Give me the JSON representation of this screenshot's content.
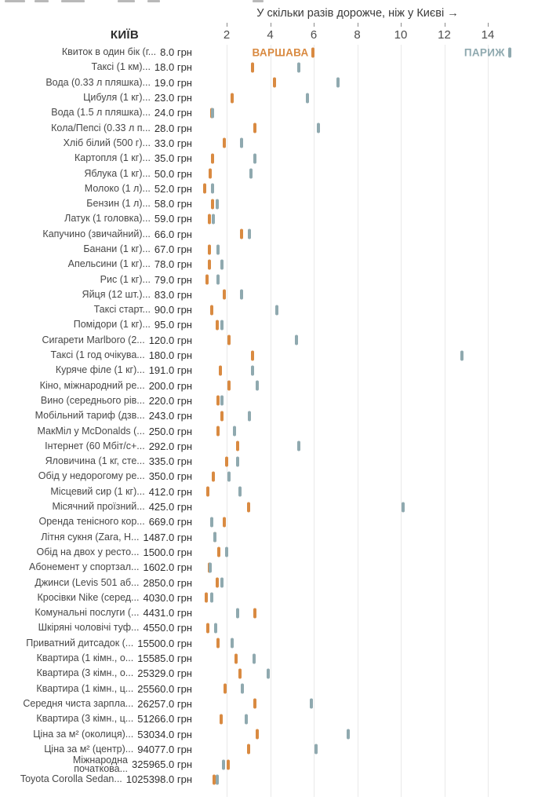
{
  "title": "У скільки разів дорожче, ніж у Києві →",
  "kyiv_header": "КИЇВ",
  "legend": {
    "warsaw": "ВАРШАВА",
    "paris": "ПАРИЖ"
  },
  "colors": {
    "warsaw": "#d98a41",
    "paris": "#8fa9af",
    "grid": "#e9e9e9",
    "title_text": "#3a3a3a",
    "tick_text": "#4d4d4d"
  },
  "chart_data": {
    "type": "scatter",
    "title": "У скільки разів дорожче, ніж у Києві →",
    "xlabel": "У скільки разів дорожче, ніж у Києві (разів)",
    "x_ticks": [
      2,
      4,
      6,
      8,
      10,
      12,
      14
    ],
    "xlim": [
      0.6,
      16.3
    ],
    "grid": true,
    "legend_position": "inline-first-row",
    "series_names": [
      "ВАРШАВА",
      "ПАРИЖ"
    ],
    "items": [
      {
        "name": "Квиток в один бік (г...",
        "price": "8.0 грн",
        "warsaw": 5.95,
        "paris": 15.0
      },
      {
        "name": "Таксі (1 км)...",
        "price": "18.0 грн",
        "warsaw": 3.2,
        "paris": 5.3
      },
      {
        "name": "Вода (0.33 л пляшка)...",
        "price": "19.0 грн",
        "warsaw": 4.2,
        "paris": 7.1
      },
      {
        "name": "Цибуля (1 кг)...",
        "price": "23.0 грн",
        "warsaw": 2.25,
        "paris": 5.7
      },
      {
        "name": "Вода (1.5 л пляшка)...",
        "price": "24.0 грн",
        "warsaw": 1.3,
        "paris": 1.35
      },
      {
        "name": "Кола/Пепсі (0.33 л п...",
        "price": "28.0 грн",
        "warsaw": 3.3,
        "paris": 6.2
      },
      {
        "name": "Хліб білий (500 г)...",
        "price": "33.0 грн",
        "warsaw": 1.9,
        "paris": 2.7
      },
      {
        "name": "Картопля (1 кг)...",
        "price": "35.0 грн",
        "warsaw": 1.35,
        "paris": 3.3
      },
      {
        "name": "Яблука (1 кг)...",
        "price": "50.0 грн",
        "warsaw": 1.25,
        "paris": 3.1
      },
      {
        "name": "Молоко (1 л)...",
        "price": "52.0 грн",
        "warsaw": 1.0,
        "paris": 1.35
      },
      {
        "name": "Бензин (1 л)...",
        "price": "58.0 грн",
        "warsaw": 1.35,
        "paris": 1.55
      },
      {
        "name": "Латук (1 головка)...",
        "price": "59.0 грн",
        "warsaw": 1.2,
        "paris": 1.4
      },
      {
        "name": "Капучино (звичайний)...",
        "price": "66.0 грн",
        "warsaw": 2.7,
        "paris": 3.05
      },
      {
        "name": "Банани (1 кг)...",
        "price": "67.0 грн",
        "warsaw": 1.2,
        "paris": 1.6
      },
      {
        "name": "Апельсини (1 кг)...",
        "price": "78.0 грн",
        "warsaw": 1.2,
        "paris": 1.8
      },
      {
        "name": "Рис (1 кг)...",
        "price": "79.0 грн",
        "warsaw": 1.1,
        "paris": 1.6
      },
      {
        "name": "Яйця (12 шт.)...",
        "price": "83.0 грн",
        "warsaw": 1.9,
        "paris": 2.7
      },
      {
        "name": "Таксі старт...",
        "price": "90.0 грн",
        "warsaw": 1.3,
        "paris": 4.3
      },
      {
        "name": "Помідори (1 кг)...",
        "price": "95.0 грн",
        "warsaw": 1.55,
        "paris": 1.8
      },
      {
        "name": "Сигарети Marlboro (2...",
        "price": "120.0 грн",
        "warsaw": 2.1,
        "paris": 5.2
      },
      {
        "name": "Таксі (1 год очікува...",
        "price": "180.0 грн",
        "warsaw": 3.2,
        "paris": 12.8
      },
      {
        "name": "Куряче філе (1 кг)...",
        "price": "191.0 грн",
        "warsaw": 1.7,
        "paris": 3.2
      },
      {
        "name": "Кіно, міжнародний ре...",
        "price": "200.0 грн",
        "warsaw": 2.1,
        "paris": 3.4
      },
      {
        "name": "Вино (середнього рів...",
        "price": "220.0 грн",
        "warsaw": 1.6,
        "paris": 1.8
      },
      {
        "name": "Мобільний тариф (дзв...",
        "price": "243.0 грн",
        "warsaw": 1.8,
        "paris": 3.05
      },
      {
        "name": "МакМіл у McDonalds (...",
        "price": "250.0 грн",
        "warsaw": 1.6,
        "paris": 2.35
      },
      {
        "name": "Інтернет (60 Мбіт/с+...",
        "price": "292.0 грн",
        "warsaw": 2.5,
        "paris": 5.3
      },
      {
        "name": "Яловичина (1 кг, сте...",
        "price": "335.0 грн",
        "warsaw": 2.0,
        "paris": 2.5
      },
      {
        "name": "Обід у недорогому ре...",
        "price": "350.0 грн",
        "warsaw": 1.4,
        "paris": 2.1
      },
      {
        "name": "Місцевий сир (1 кг)...",
        "price": "412.0 грн",
        "warsaw": 1.15,
        "paris": 2.6
      },
      {
        "name": "Місячний проїзний...",
        "price": "425.0 грн",
        "warsaw": 3.0,
        "paris": 10.1
      },
      {
        "name": "Оренда тенісного кор...",
        "price": "669.0 грн",
        "warsaw": 1.9,
        "paris": 1.3
      },
      {
        "name": "Літня сукня (Zara, H...",
        "price": "1487.0 грн",
        "warsaw": 1.45,
        "paris": 1.47
      },
      {
        "name": "Обід на двох у ресто...",
        "price": "1500.0 грн",
        "warsaw": 1.65,
        "paris": 2.0
      },
      {
        "name": "Абонемент у спортзал...",
        "price": "1602.0 грн",
        "warsaw": 1.2,
        "paris": 1.25
      },
      {
        "name": "Джинси (Levis 501 аб...",
        "price": "2850.0 грн",
        "warsaw": 1.55,
        "paris": 1.8
      },
      {
        "name": "Кросівки Nike (серед...",
        "price": "4030.0 грн",
        "warsaw": 1.05,
        "paris": 1.3
      },
      {
        "name": "Комунальні послуги (...",
        "price": "4431.0 грн",
        "warsaw": 3.3,
        "paris": 2.5
      },
      {
        "name": "Шкіряні чоловічі туф...",
        "price": "4550.0 грн",
        "warsaw": 1.15,
        "paris": 1.5
      },
      {
        "name": "Приватний дитсадок (...",
        "price": "15500.0 грн",
        "warsaw": 1.6,
        "paris": 2.25
      },
      {
        "name": "Квартира (1 кімн., о...",
        "price": "15585.0 грн",
        "warsaw": 2.45,
        "paris": 3.25
      },
      {
        "name": "Квартира (3 кімн., о...",
        "price": "25329.0 грн",
        "warsaw": 2.6,
        "paris": 3.9
      },
      {
        "name": "Квартира (1 кімн., ц...",
        "price": "25560.0 грн",
        "warsaw": 1.93,
        "paris": 2.72
      },
      {
        "name": "Середня чиста зарпла...",
        "price": "26257.0 грн",
        "warsaw": 3.3,
        "paris": 5.9
      },
      {
        "name": "Квартира (3 кімн., ц...",
        "price": "51266.0 грн",
        "warsaw": 1.75,
        "paris": 2.9
      },
      {
        "name": "Ціна за м² (околиця)...",
        "price": "53034.0 грн",
        "warsaw": 3.4,
        "paris": 7.6
      },
      {
        "name": "Ціна за м² (центр)...",
        "price": "94077.0 грн",
        "warsaw": 3.0,
        "paris": 6.1
      },
      {
        "name": "Міжнародна\nпочаткова...",
        "price": "325965.0 грн",
        "warsaw": 2.07,
        "paris": 1.86
      },
      {
        "name": "Toyota Corolla Sedan...",
        "price": "1025398.0 грн",
        "warsaw": 1.42,
        "paris": 1.57
      }
    ]
  }
}
